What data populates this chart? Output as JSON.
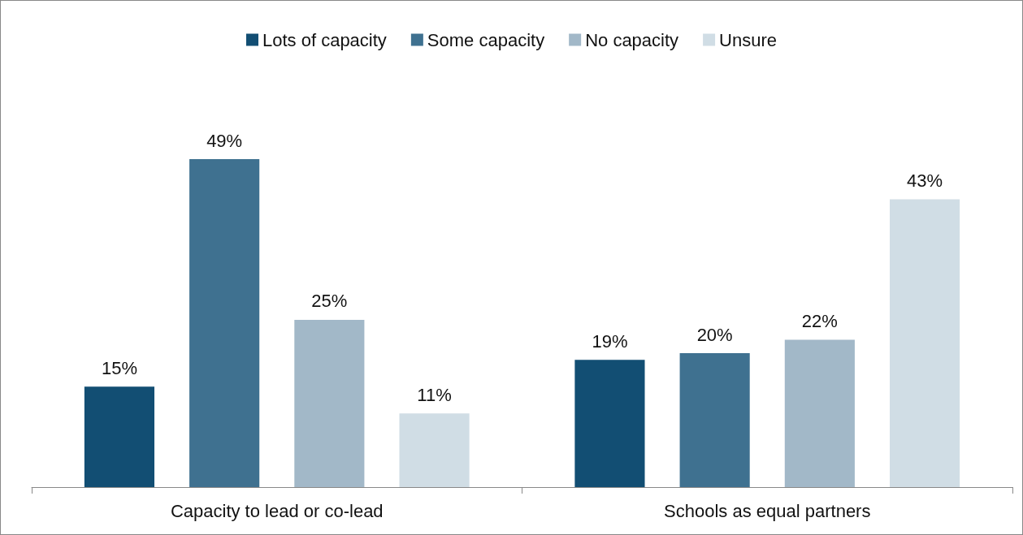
{
  "chart_data": {
    "type": "bar",
    "categories": [
      "Capacity to lead or co-lead",
      "Schools as equal partners"
    ],
    "series": [
      {
        "name": "Lots of capacity",
        "color": "#124e73",
        "values": [
          15,
          19
        ],
        "value_labels": [
          "15%",
          "19%"
        ]
      },
      {
        "name": "Some capacity",
        "color": "#3f7190",
        "values": [
          49,
          20
        ],
        "value_labels": [
          "49%",
          "20%"
        ]
      },
      {
        "name": "No capacity",
        "color": "#a2b8c8",
        "values": [
          25,
          22
        ],
        "value_labels": [
          "25%",
          "22%"
        ]
      },
      {
        "name": "Unsure",
        "color": "#d0dde5",
        "values": [
          11,
          43
        ],
        "value_labels": [
          "11%",
          "43%"
        ]
      }
    ],
    "legend": "top",
    "grid": false
  }
}
